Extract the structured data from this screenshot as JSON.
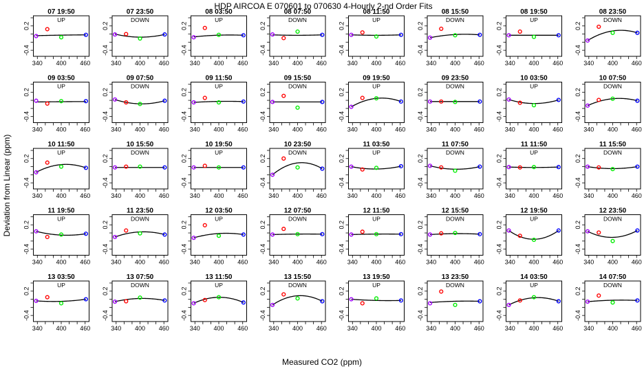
{
  "title": "HDP   AIRCOA E   070601 to 070630   4-Hourly 2-nd Order Fits",
  "xlabel": "Measured CO2 (ppm)",
  "ylabel": "Deviation from Linear (ppm)",
  "colors": {
    "std1": "#a000ff",
    "std2": "#ff0000",
    "std3": "#00ee00",
    "std4": "#0000ff",
    "curve": "#000000"
  },
  "chart_data": {
    "type": "scatter",
    "xlim": [
      330,
      470
    ],
    "ylim": [
      -0.55,
      0.45
    ],
    "x_ticks": [
      340,
      360,
      380,
      400,
      420,
      440,
      460
    ],
    "x_tick_labels": [
      "340",
      "400",
      "460"
    ],
    "y_ticks": [
      -0.4,
      -0.2,
      0,
      0.2,
      0.4
    ],
    "y_tick_labels": [
      "-0.4",
      "0.2"
    ],
    "standards_x": [
      337,
      365,
      400,
      462
    ],
    "panels": [
      {
        "title": "07 19:50",
        "dir": "UP",
        "y": [
          -0.05,
          0.12,
          -0.08,
          -0.02
        ],
        "q": [
          -0.04,
          -0.03,
          -0.03,
          -0.02
        ]
      },
      {
        "title": "07 23:50",
        "dir": "DOWN",
        "y": [
          -0.01,
          0.0,
          -0.11,
          -0.01
        ],
        "q": [
          0.0,
          -0.05,
          -0.09,
          -0.01
        ]
      },
      {
        "title": "08 03:50",
        "dir": "UP",
        "y": [
          -0.08,
          0.15,
          -0.02,
          -0.03
        ],
        "q": [
          -0.07,
          -0.04,
          -0.03,
          -0.03
        ]
      },
      {
        "title": "08 07:50",
        "dir": "DOWN",
        "y": [
          -0.01,
          -0.1,
          0.06,
          -0.02
        ],
        "q": [
          -0.02,
          -0.03,
          -0.03,
          -0.02
        ]
      },
      {
        "title": "08 11:50",
        "dir": "UP",
        "y": [
          -0.02,
          0.04,
          -0.06,
          -0.02
        ],
        "q": [
          -0.02,
          -0.03,
          -0.03,
          -0.02
        ]
      },
      {
        "title": "08 15:50",
        "dir": "DOWN",
        "y": [
          -0.09,
          0.13,
          -0.03,
          -0.02
        ],
        "q": [
          -0.09,
          -0.03,
          -0.02,
          -0.02
        ]
      },
      {
        "title": "08 19:50",
        "dir": "UP",
        "y": [
          -0.03,
          0.06,
          -0.07,
          -0.03
        ],
        "q": [
          -0.03,
          -0.03,
          -0.03,
          -0.03
        ]
      },
      {
        "title": "08 23:50",
        "dir": "DOWN",
        "y": [
          -0.16,
          0.18,
          0.03,
          0.03
        ],
        "q": [
          -0.16,
          0.0,
          0.08,
          0.03
        ]
      },
      {
        "title": "09 03:50",
        "dir": "UP",
        "y": [
          -0.01,
          -0.08,
          -0.02,
          -0.02
        ],
        "q": [
          -0.04,
          -0.04,
          -0.03,
          -0.03
        ]
      },
      {
        "title": "09 07:50",
        "dir": "DOWN",
        "y": [
          0.02,
          -0.05,
          -0.09,
          -0.01
        ],
        "q": [
          0.02,
          -0.06,
          -0.09,
          -0.01
        ]
      },
      {
        "title": "09 11:50",
        "dir": "UP",
        "y": [
          -0.05,
          0.06,
          -0.05,
          -0.03
        ],
        "q": [
          -0.05,
          -0.03,
          -0.03,
          -0.03
        ]
      },
      {
        "title": "09 15:50",
        "dir": "DOWN",
        "y": [
          -0.04,
          0.11,
          -0.18,
          -0.04
        ],
        "q": [
          -0.04,
          -0.04,
          -0.04,
          -0.04
        ]
      },
      {
        "title": "09 19:50",
        "dir": "UP",
        "y": [
          -0.16,
          0.06,
          0.05,
          -0.03
        ],
        "q": [
          -0.16,
          0.0,
          0.04,
          -0.03
        ]
      },
      {
        "title": "09 23:50",
        "dir": "DOWN",
        "y": [
          -0.03,
          -0.03,
          -0.04,
          -0.03
        ],
        "q": [
          -0.03,
          -0.03,
          -0.03,
          -0.03
        ]
      },
      {
        "title": "10 03:50",
        "dir": "UP",
        "y": [
          0.02,
          -0.06,
          -0.12,
          0.01
        ],
        "q": [
          0.02,
          -0.05,
          -0.09,
          0.01
        ]
      },
      {
        "title": "10 07:50",
        "dir": "DOWN",
        "y": [
          -0.13,
          0.01,
          0.04,
          -0.01
        ],
        "q": [
          -0.13,
          -0.01,
          0.04,
          -0.01
        ]
      },
      {
        "title": "10 11:50",
        "dir": "UP",
        "y": [
          -0.14,
          0.1,
          0.0,
          -0.03
        ],
        "q": [
          -0.14,
          0.01,
          0.04,
          -0.03
        ]
      },
      {
        "title": "10 15:50",
        "dir": "DOWN",
        "y": [
          -0.02,
          0.0,
          0.0,
          -0.02
        ],
        "q": [
          -0.02,
          -0.02,
          -0.02,
          -0.02
        ]
      },
      {
        "title": "10 19:50",
        "dir": "UP",
        "y": [
          -0.02,
          0.02,
          -0.02,
          -0.02
        ],
        "q": [
          -0.02,
          -0.02,
          -0.02,
          -0.02
        ]
      },
      {
        "title": "10 23:50",
        "dir": "DOWN",
        "y": [
          -0.2,
          0.2,
          -0.02,
          -0.05
        ],
        "q": [
          -0.2,
          0.01,
          0.1,
          -0.05
        ]
      },
      {
        "title": "11 03:50",
        "dir": "UP",
        "y": [
          0.0,
          -0.07,
          -0.03,
          0.01
        ],
        "q": [
          0.0,
          -0.05,
          -0.06,
          0.01
        ]
      },
      {
        "title": "11 07:50",
        "dir": "DOWN",
        "y": [
          0.02,
          -0.02,
          -0.1,
          0.0
        ],
        "q": [
          0.02,
          -0.04,
          -0.07,
          0.0
        ]
      },
      {
        "title": "11 11:50",
        "dir": "UP",
        "y": [
          -0.01,
          -0.02,
          -0.01,
          -0.01
        ],
        "q": [
          -0.01,
          -0.02,
          -0.02,
          -0.01
        ]
      },
      {
        "title": "11 15:50",
        "dir": "DOWN",
        "y": [
          0.0,
          -0.02,
          -0.06,
          0.0
        ],
        "q": [
          0.0,
          -0.04,
          -0.05,
          0.0
        ]
      },
      {
        "title": "11 19:50",
        "dir": "UP",
        "y": [
          0.04,
          -0.1,
          -0.04,
          -0.02
        ],
        "q": [
          0.04,
          -0.03,
          -0.05,
          -0.02
        ]
      },
      {
        "title": "11 23:50",
        "dir": "DOWN",
        "y": [
          -0.1,
          0.06,
          -0.01,
          -0.04
        ],
        "q": [
          -0.1,
          -0.01,
          0.03,
          -0.04
        ]
      },
      {
        "title": "12 03:50",
        "dir": "UP",
        "y": [
          -0.12,
          0.19,
          -0.07,
          -0.04
        ],
        "q": [
          -0.12,
          -0.04,
          -0.02,
          -0.04
        ]
      },
      {
        "title": "12 07:50",
        "dir": "DOWN",
        "y": [
          -0.04,
          0.1,
          -0.03,
          -0.03
        ],
        "q": [
          -0.04,
          -0.03,
          -0.03,
          -0.03
        ]
      },
      {
        "title": "12 11:50",
        "dir": "UP",
        "y": [
          -0.04,
          0.03,
          -0.03,
          -0.03
        ],
        "q": [
          -0.04,
          -0.03,
          -0.03,
          -0.03
        ]
      },
      {
        "title": "12 15:50",
        "dir": "DOWN",
        "y": [
          -0.04,
          -0.01,
          0.0,
          -0.03
        ],
        "q": [
          -0.04,
          -0.02,
          -0.02,
          -0.03
        ]
      },
      {
        "title": "12 19:50",
        "dir": "UP",
        "y": [
          0.06,
          -0.07,
          -0.17,
          0.06
        ],
        "q": [
          0.06,
          -0.11,
          -0.17,
          0.06
        ]
      },
      {
        "title": "12 23:50",
        "dir": "DOWN",
        "y": [
          0.04,
          0.01,
          -0.2,
          0.06
        ],
        "q": [
          0.04,
          -0.08,
          -0.12,
          0.06
        ]
      },
      {
        "title": "13 03:50",
        "dir": "UP",
        "y": [
          -0.04,
          0.05,
          -0.1,
          0.0
        ],
        "q": [
          -0.04,
          -0.05,
          -0.06,
          0.0
        ]
      },
      {
        "title": "13 07:50",
        "dir": "DOWN",
        "y": [
          -0.06,
          -0.05,
          0.04,
          -0.03
        ],
        "q": [
          -0.06,
          0.0,
          0.02,
          -0.03
        ]
      },
      {
        "title": "13 11:50",
        "dir": "UP",
        "y": [
          -0.1,
          -0.02,
          0.05,
          -0.08
        ],
        "q": [
          -0.1,
          0.01,
          0.06,
          -0.08
        ]
      },
      {
        "title": "13 15:50",
        "dir": "DOWN",
        "y": [
          -0.14,
          0.12,
          0.02,
          -0.05
        ],
        "q": [
          -0.14,
          0.03,
          0.09,
          -0.05
        ]
      },
      {
        "title": "13 19:50",
        "dir": "UP",
        "y": [
          0.0,
          -0.1,
          0.02,
          -0.03
        ],
        "q": [
          0.0,
          -0.03,
          -0.02,
          -0.03
        ]
      },
      {
        "title": "13 23:50",
        "dir": "DOWN",
        "y": [
          -0.1,
          0.19,
          -0.14,
          -0.05
        ],
        "q": [
          -0.08,
          -0.06,
          -0.05,
          -0.05
        ]
      },
      {
        "title": "14 03:50",
        "dir": "UP",
        "y": [
          -0.14,
          -0.03,
          0.05,
          -0.05
        ],
        "q": [
          -0.14,
          -0.02,
          0.05,
          -0.05
        ]
      },
      {
        "title": "14 07:50",
        "dir": "DOWN",
        "y": [
          -0.06,
          0.09,
          -0.08,
          -0.03
        ],
        "q": [
          -0.06,
          -0.03,
          -0.03,
          -0.03
        ]
      }
    ]
  }
}
